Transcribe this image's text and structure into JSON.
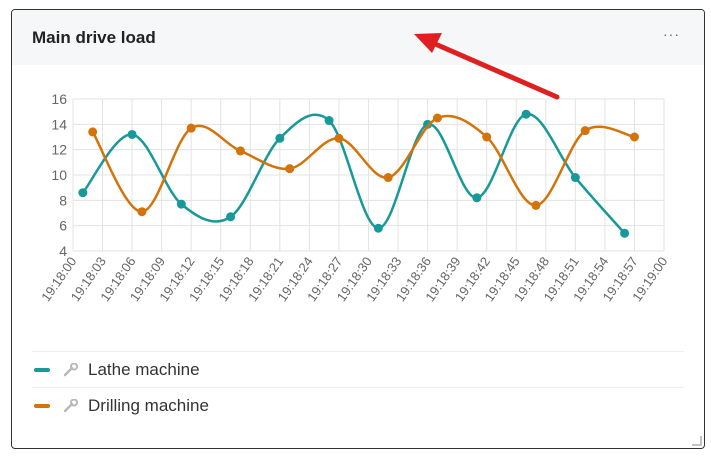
{
  "card": {
    "title": "Main drive load",
    "menu_icon": "more-dots-icon",
    "menu_glyph": "···"
  },
  "chart_data": {
    "type": "line",
    "title": "",
    "xlabel": "",
    "ylabel": "",
    "x": [
      "19:18:00",
      "19:18:03",
      "19:18:06",
      "19:18:09",
      "19:18:12",
      "19:18:15",
      "19:18:18",
      "19:18:21",
      "19:18:24",
      "19:18:27",
      "19:18:30",
      "19:18:33",
      "19:18:36",
      "19:18:39",
      "19:18:42",
      "19:18:45",
      "19:18:48",
      "19:18:51",
      "19:18:54",
      "19:18:57",
      "19:19:00"
    ],
    "ylim": [
      4,
      16
    ],
    "yticks": [
      4,
      6,
      8,
      10,
      12,
      14,
      16
    ],
    "grid": true,
    "series": [
      {
        "name": "Lathe machine",
        "color": "#17999a",
        "points": [
          {
            "x": "19:18:01",
            "y": 8.6
          },
          {
            "x": "19:18:06",
            "y": 13.2
          },
          {
            "x": "19:18:11",
            "y": 7.7
          },
          {
            "x": "19:18:16",
            "y": 6.7
          },
          {
            "x": "19:18:21",
            "y": 12.9
          },
          {
            "x": "19:18:26",
            "y": 14.3
          },
          {
            "x": "19:18:31",
            "y": 5.8
          },
          {
            "x": "19:18:36",
            "y": 14.0
          },
          {
            "x": "19:18:41",
            "y": 8.2
          },
          {
            "x": "19:18:46",
            "y": 14.8
          },
          {
            "x": "19:18:51",
            "y": 9.8
          },
          {
            "x": "19:18:56",
            "y": 5.4
          }
        ]
      },
      {
        "name": "Drilling machine",
        "color": "#d3730a",
        "points": [
          {
            "x": "19:18:02",
            "y": 13.4
          },
          {
            "x": "19:18:07",
            "y": 7.1
          },
          {
            "x": "19:18:12",
            "y": 13.7
          },
          {
            "x": "19:18:17",
            "y": 11.9
          },
          {
            "x": "19:18:22",
            "y": 10.5
          },
          {
            "x": "19:18:27",
            "y": 12.9
          },
          {
            "x": "19:18:32",
            "y": 9.8
          },
          {
            "x": "19:18:37",
            "y": 14.5
          },
          {
            "x": "19:18:42",
            "y": 13.0
          },
          {
            "x": "19:18:47",
            "y": 7.6
          },
          {
            "x": "19:18:52",
            "y": 13.5
          },
          {
            "x": "19:18:57",
            "y": 13.0
          }
        ]
      }
    ]
  },
  "legend": {
    "items": [
      {
        "label": "Lathe machine",
        "color": "#17999a",
        "icon": "wrench-icon"
      },
      {
        "label": "Drilling machine",
        "color": "#d3730a",
        "icon": "wrench-icon"
      }
    ]
  },
  "annotation": {
    "arrow_color": "#e02020"
  }
}
